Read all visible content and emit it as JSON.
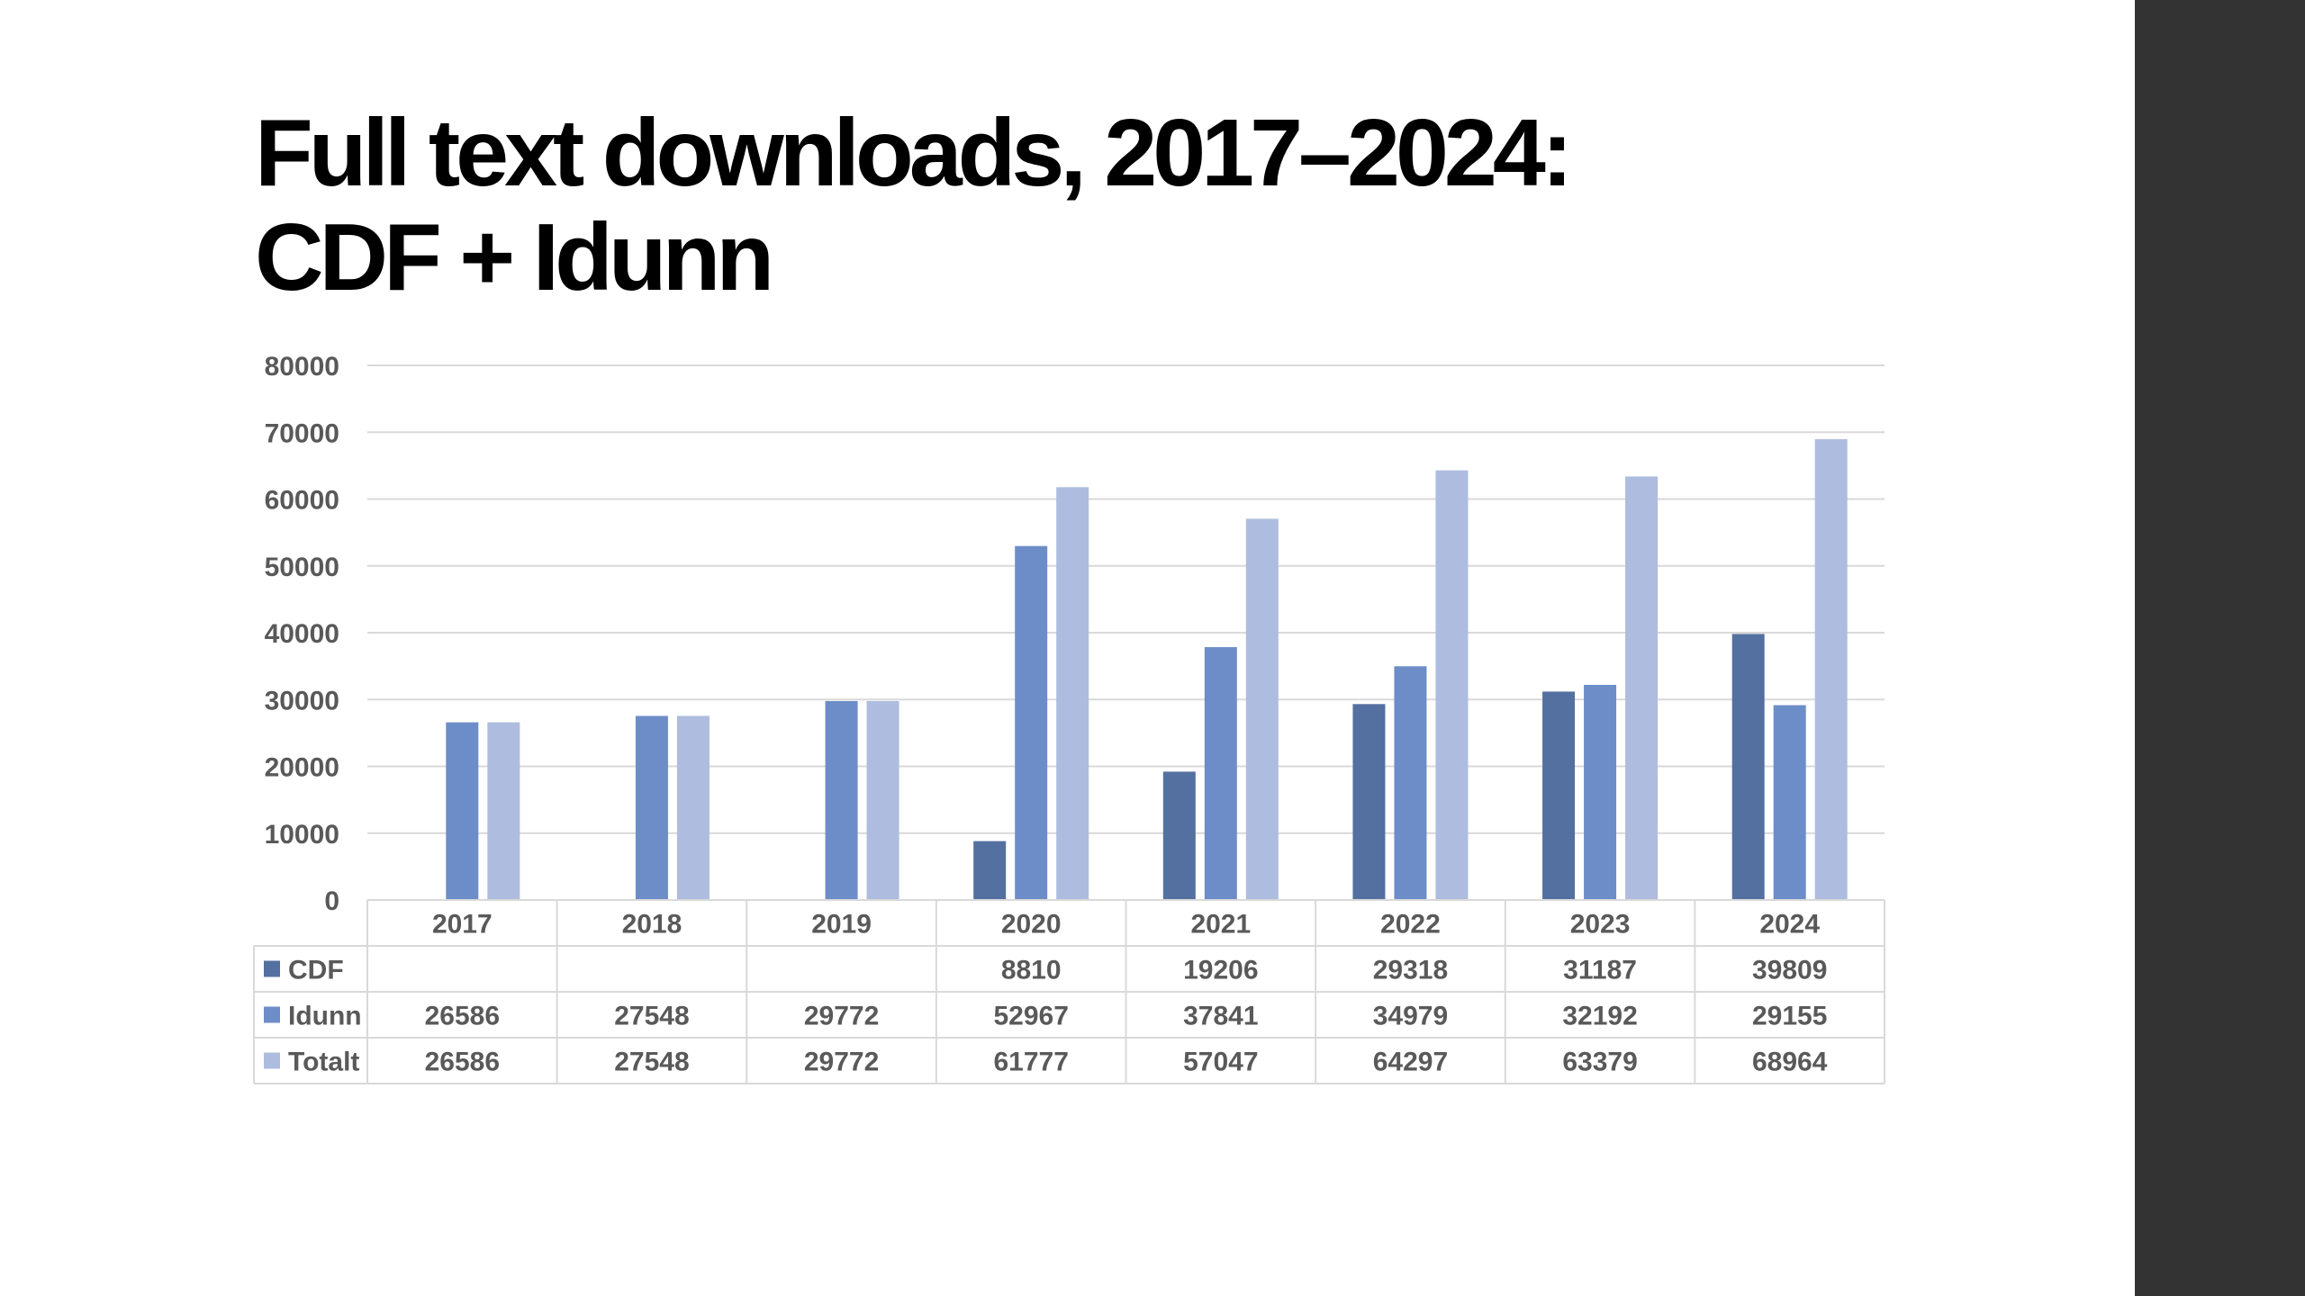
{
  "title_lines": [
    "Full text downloads, 2017–2024:",
    "CDF + Idunn"
  ],
  "chart_data": {
    "type": "bar",
    "title": "Full text downloads, 2017–2024: CDF + Idunn",
    "categories": [
      "2017",
      "2018",
      "2019",
      "2020",
      "2021",
      "2022",
      "2023",
      "2024"
    ],
    "series": [
      {
        "name": "CDF",
        "color": "#5470a0",
        "values": [
          null,
          null,
          null,
          8810,
          19206,
          29318,
          31187,
          39809
        ]
      },
      {
        "name": "Idunn",
        "color": "#6d8dc8",
        "values": [
          26586,
          27548,
          29772,
          52967,
          37841,
          34979,
          32192,
          29155
        ]
      },
      {
        "name": "Totalt",
        "color": "#aebcdf",
        "values": [
          26586,
          27548,
          29772,
          61777,
          57047,
          64297,
          63379,
          68964
        ]
      }
    ],
    "ylim": [
      0,
      80000
    ],
    "yticks": [
      0,
      10000,
      20000,
      30000,
      40000,
      50000,
      60000,
      70000,
      80000
    ],
    "grid": true,
    "legend": "data table",
    "data_table": true
  }
}
